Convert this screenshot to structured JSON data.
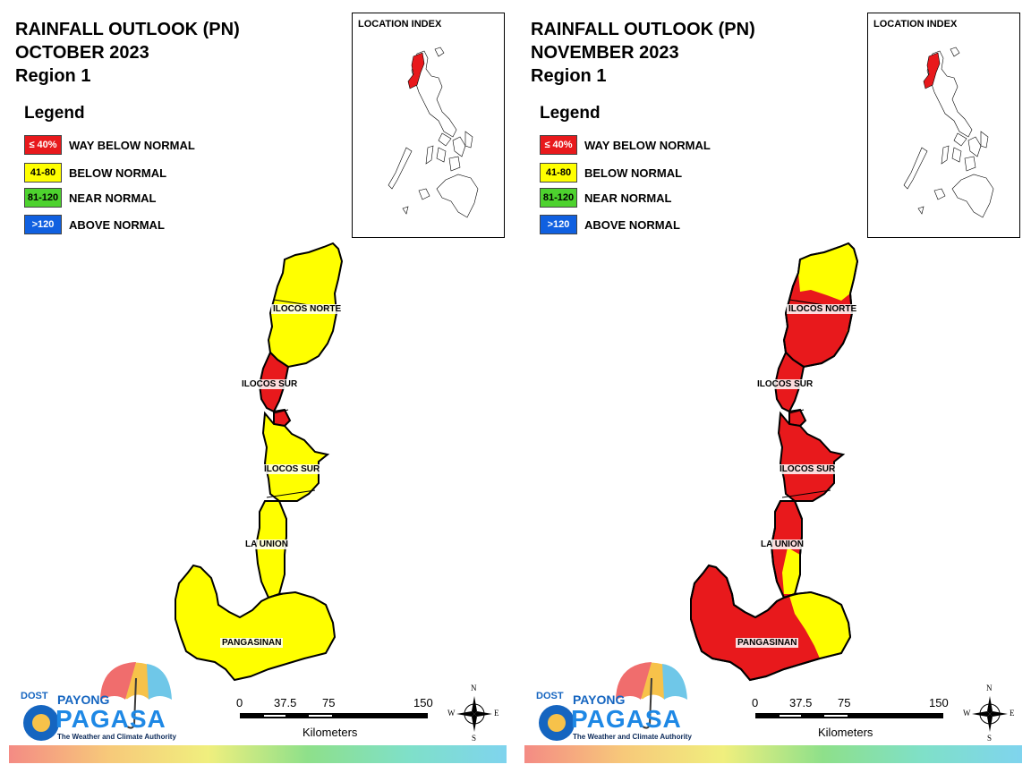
{
  "panels": [
    {
      "title_line1": "RAINFALL OUTLOOK (PN)",
      "title_line2": "OCTOBER 2023",
      "title_line3": "Region 1",
      "legend_title": "Legend",
      "legend": [
        {
          "code": "≤ 40%",
          "label": "WAY BELOW NORMAL",
          "color": "#e8191c",
          "text_color": "#ffffff"
        },
        {
          "code": "41-80",
          "label": "BELOW NORMAL",
          "color": "#ffff00",
          "text_color": "#000000"
        },
        {
          "code": "81-120",
          "label": "NEAR NORMAL",
          "color": "#4dd22e",
          "text_color": "#000000"
        },
        {
          "code": ">120",
          "label": "ABOVE NORMAL",
          "color": "#1060e0",
          "text_color": "#ffffff"
        }
      ],
      "location_index_title": "LOCATION INDEX",
      "provinces": [
        "ILOCOS NORTE",
        "ILOCOS SUR",
        "ILOCOS SUR",
        "LA UNION",
        "PANGASINAN"
      ],
      "scale": {
        "ticks": [
          "0",
          "37.5",
          "75",
          "150"
        ],
        "unit": "Kilometers"
      },
      "compass": {
        "n": "N",
        "s": "S",
        "e": "E",
        "w": "W"
      },
      "logo": {
        "dost": "DOST",
        "payong": "PAYONG",
        "pagasa": "PAGASA",
        "tagline": "The Weather and Climate Authority"
      }
    },
    {
      "title_line1": "RAINFALL OUTLOOK (PN)",
      "title_line2": "NOVEMBER 2023",
      "title_line3": "Region 1",
      "legend_title": "Legend",
      "legend": [
        {
          "code": "≤ 40%",
          "label": "WAY BELOW NORMAL",
          "color": "#e8191c",
          "text_color": "#ffffff"
        },
        {
          "code": "41-80",
          "label": "BELOW NORMAL",
          "color": "#ffff00",
          "text_color": "#000000"
        },
        {
          "code": "81-120",
          "label": "NEAR NORMAL",
          "color": "#4dd22e",
          "text_color": "#000000"
        },
        {
          "code": ">120",
          "label": "ABOVE NORMAL",
          "color": "#1060e0",
          "text_color": "#ffffff"
        }
      ],
      "location_index_title": "LOCATION INDEX",
      "provinces": [
        "ILOCOS NORTE",
        "ILOCOS SUR",
        "ILOCOS SUR",
        "LA UNION",
        "PANGASINAN"
      ],
      "scale": {
        "ticks": [
          "0",
          "37.5",
          "75",
          "150"
        ],
        "unit": "Kilometers"
      },
      "compass": {
        "n": "N",
        "s": "S",
        "e": "E",
        "w": "W"
      },
      "logo": {
        "dost": "DOST",
        "payong": "PAYONG",
        "pagasa": "PAGASA",
        "tagline": "The Weather and Climate Authority"
      }
    }
  ],
  "map_colors": {
    "way_below_normal": "#e8191c",
    "below_normal": "#ffff00",
    "near_normal": "#4dd22e",
    "above_normal": "#1060e0"
  }
}
